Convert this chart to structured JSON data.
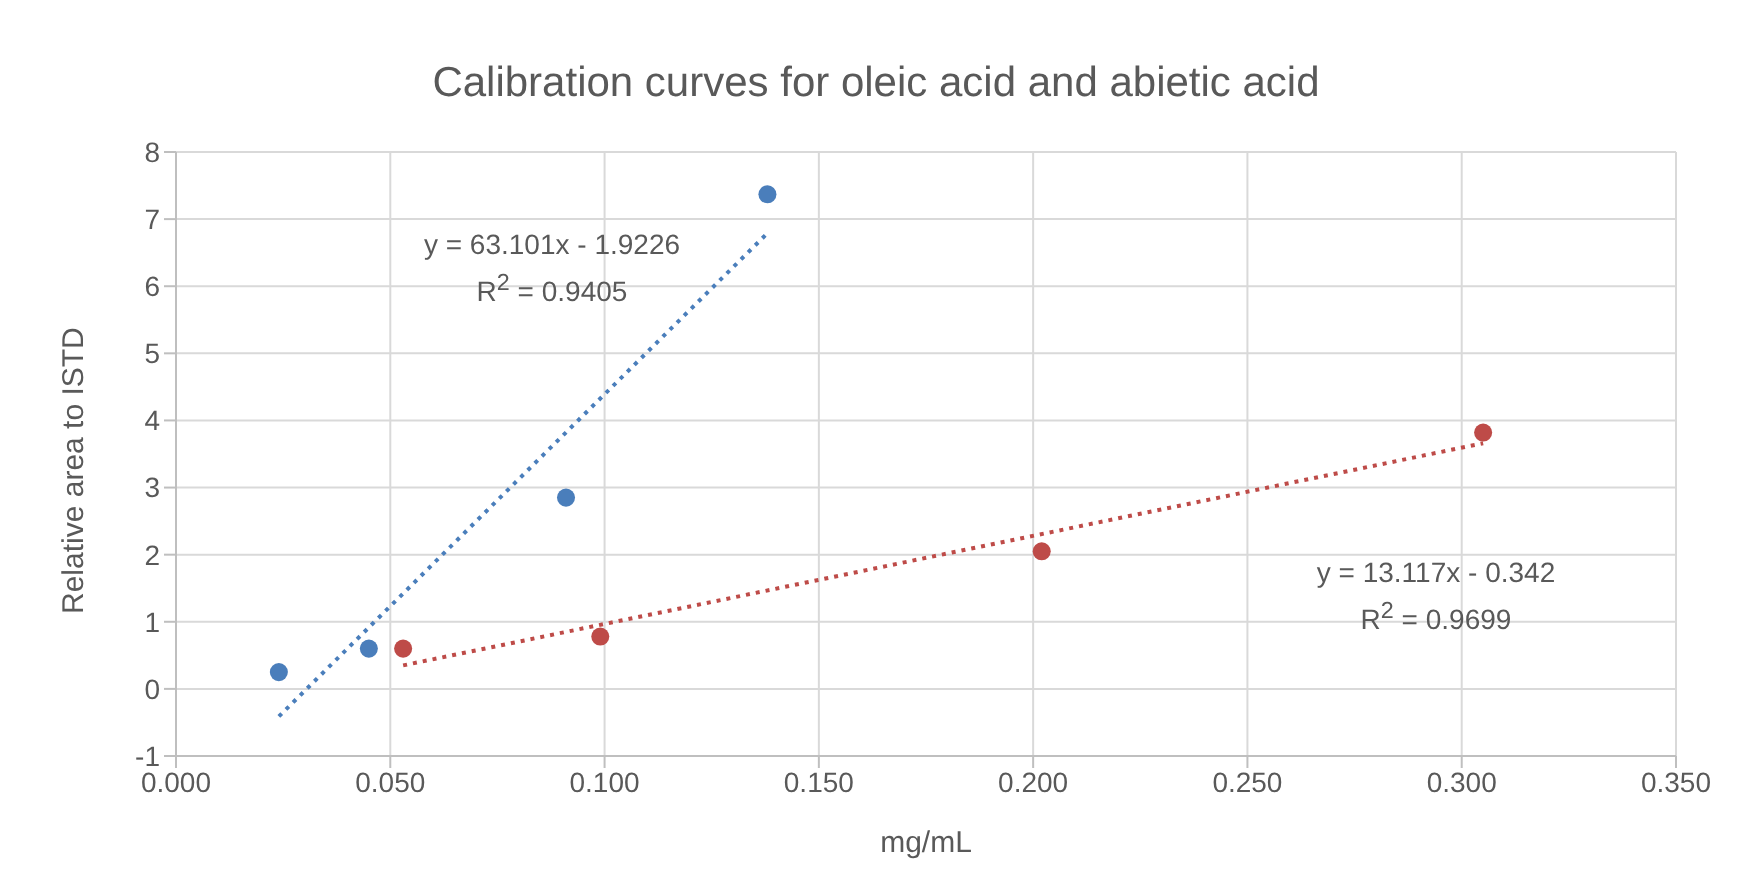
{
  "chart_data": {
    "type": "scatter",
    "title": "Calibration curves for oleic acid and abietic acid",
    "xlabel": "mg/mL",
    "ylabel": "Relative area to ISTD",
    "series": [
      {
        "type": "scatter",
        "color": "#4a7ebb",
        "x": [
          0.024,
          0.045,
          0.091,
          0.138
        ],
        "values": [
          0.25,
          0.6,
          2.85,
          7.37
        ]
      },
      {
        "type": "scatter",
        "color": "#be4b48",
        "x": [
          0.053,
          0.099,
          0.202,
          0.305
        ],
        "values": [
          0.6,
          0.78,
          2.05,
          3.82
        ]
      },
      {
        "type": "line",
        "color": "#4a7ebb",
        "line_style": "dotted",
        "marker": "none",
        "x": [
          0.024,
          0.138
        ],
        "values": [
          -0.41,
          6.79
        ]
      },
      {
        "type": "line",
        "color": "#be4b48",
        "line_style": "dotted",
        "marker": "none",
        "x": [
          0.053,
          0.305
        ],
        "values": [
          0.35,
          3.66
        ]
      }
    ],
    "annotations": [
      "y = 63.101x - 1.9226",
      "R$^{2}$ = 0.9405",
      "y = 13.117x - 0.342",
      "R$^{2}$ = 0.9699"
    ],
    "xlim": [
      0,
      0.35
    ],
    "xticks": [
      {
        "value": 0,
        "label": "0.000"
      },
      {
        "value": 0.05,
        "label": "0.050"
      },
      {
        "value": 0.1,
        "label": "0.100"
      },
      {
        "value": 0.15,
        "label": "0.150"
      },
      {
        "value": 0.2,
        "label": "0.200"
      },
      {
        "value": 0.25,
        "label": "0.250"
      },
      {
        "value": 0.3,
        "label": "0.300"
      },
      {
        "value": 0.35,
        "label": "0.350"
      }
    ],
    "ylim": [
      -1,
      8
    ],
    "yticks": [
      -1,
      0,
      1,
      2,
      3,
      4,
      5,
      6,
      7,
      8
    ],
    "grid": true,
    "legend": false,
    "marker": "circle"
  }
}
